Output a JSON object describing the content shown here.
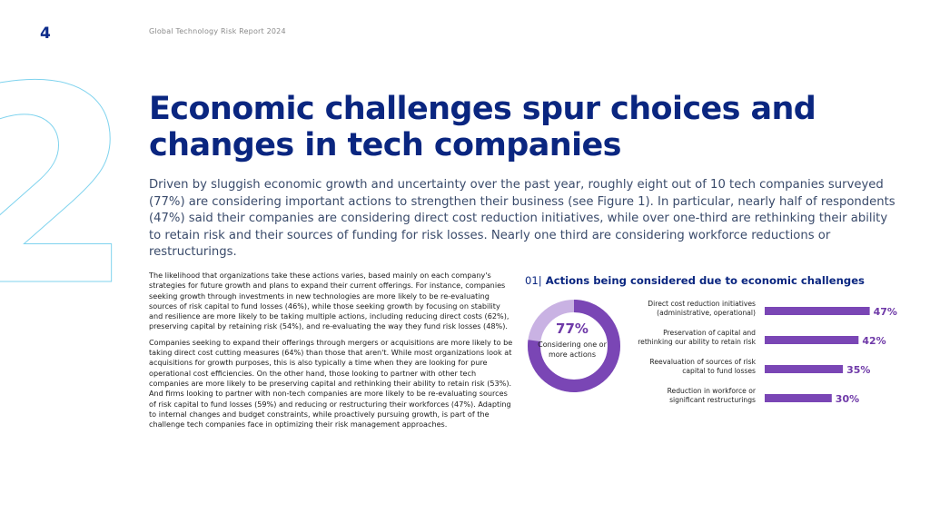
{
  "header": {
    "page_number": "4",
    "report_title": "Global Technology Risk Report 2024"
  },
  "section_numeral": "2",
  "headline": "Economic challenges spur choices and changes in tech companies",
  "lead": "Driven by sluggish economic growth and uncertainty over the past year, roughly eight out of 10 tech companies surveyed (77%) are considering important actions to strengthen their business (see Figure 1). In particular, nearly half of respondents (47%) said their companies are considering direct cost reduction initiatives, while over one-third are rethinking their ability to retain risk and their sources of funding for risk losses. Nearly one third are considering workforce reductions or restructurings.",
  "body": {
    "paragraph_1": "The likelihood that organizations take these actions varies, based mainly on each company's strategies for future growth and plans to expand their current offerings. For instance, companies seeking growth through investments in new technologies are more likely to be re-evaluating sources of risk capital to fund losses (46%), while those seeking growth by focusing on stability and resilience are more likely to be taking multiple actions, including reducing direct costs (62%), preserving capital by retaining risk (54%), and re-evaluating the way they fund risk losses (48%).",
    "paragraph_2": "Companies seeking to expand their offerings through mergers or acquisitions are more likely to be taking direct cost cutting measures (64%) than those that aren't. While most organizations look at acquisitions for growth purposes, this is also typically a time when they are looking for pure operational cost efficiencies. On the other hand, those looking to partner with other tech companies are more likely to be preserving capital and rethinking their ability to retain risk (53%). And firms looking to partner with non-tech companies are more likely to be re-evaluating sources of risk capital to fund losses (59%) and reducing or restructuring their workforces (47%). Adapting to internal changes and budget constraints, while proactively pursuing growth, is part of the challenge tech companies face in optimizing their risk management approaches."
  },
  "figure": {
    "number": "01|",
    "title": "Actions being considered due to economic challenges"
  },
  "colors": {
    "navy": "#0a2680",
    "purple": "#7a46b5",
    "light_purple": "#c9b2e3",
    "outline_cyan": "#7fd3ee"
  },
  "chart_data": [
    {
      "type": "pie",
      "title": "",
      "center_value": "77%",
      "center_label": "Considering one or more actions",
      "slices": [
        {
          "label": "Considering one or more actions",
          "value": 77
        },
        {
          "label": "Other",
          "value": 23
        }
      ]
    },
    {
      "type": "bar",
      "orientation": "horizontal",
      "title": "Actions being considered due to economic challenges",
      "categories": [
        [
          "Direct cost reduction initiatives",
          "(administrative, operational)"
        ],
        [
          "Preservation of capital and",
          "rethinking our ability to retain risk"
        ],
        [
          "Reevaluation of sources of risk",
          "capital to fund losses"
        ],
        [
          "Reduction in workforce or",
          "significant restructurings"
        ]
      ],
      "values": [
        47,
        42,
        35,
        30
      ],
      "value_labels": [
        "47%",
        "42%",
        "35%",
        "30%"
      ],
      "xlim": [
        0,
        100
      ],
      "grid": false
    }
  ]
}
